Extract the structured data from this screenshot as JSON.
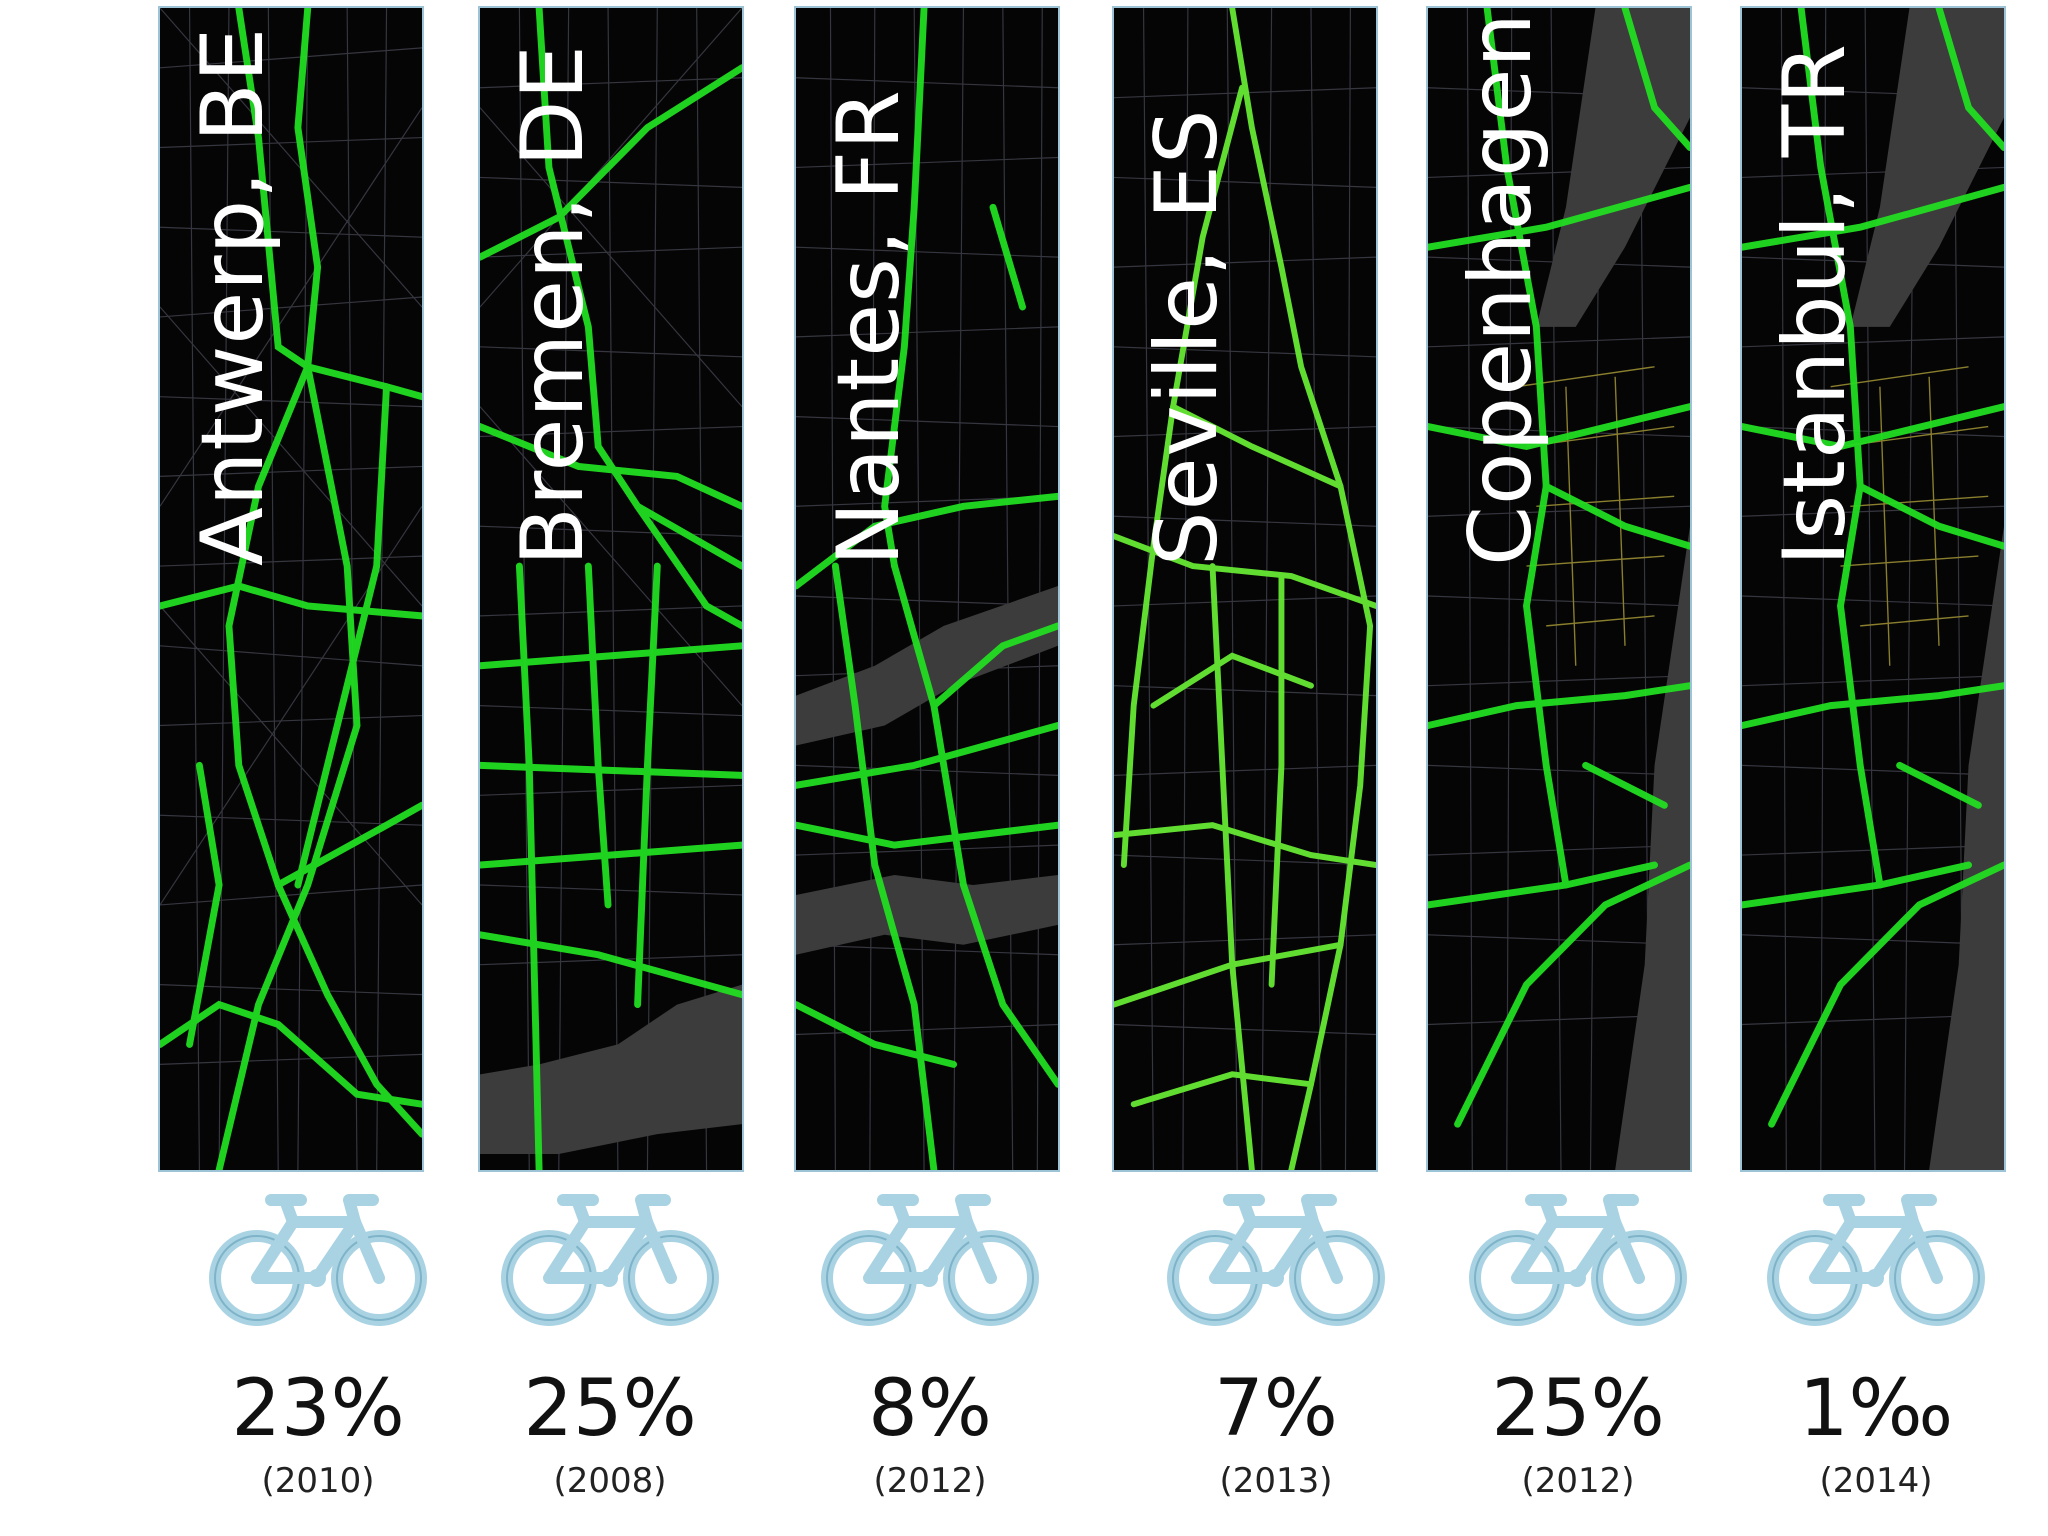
{
  "cities": [
    {
      "name": "Antwerp, BE",
      "share": "23%",
      "year": "(2010)"
    },
    {
      "name": "Bremen, DE",
      "share": "25%",
      "year": "(2008)"
    },
    {
      "name": "Nantes, FR",
      "share": "8%",
      "year": "(2012)"
    },
    {
      "name": "Seville, ES",
      "share": "7%",
      "year": "(2013)"
    },
    {
      "name": "Copenhagen, DK",
      "share": "25%",
      "year": "(2012)"
    },
    {
      "name": "Istanbul, TR",
      "share": "1‰",
      "year": "(2014)"
    }
  ],
  "icons": {
    "bike": "bicycle-icon"
  },
  "colors": {
    "map_background": "#050505",
    "bike_lanes": "#22dd22",
    "streets": "#3a3a44",
    "river": "#3c3c3c",
    "icon_fill": "#a9d3e3",
    "icon_stroke": "#7eb3c8",
    "panel_border": "#9dc3d6"
  }
}
